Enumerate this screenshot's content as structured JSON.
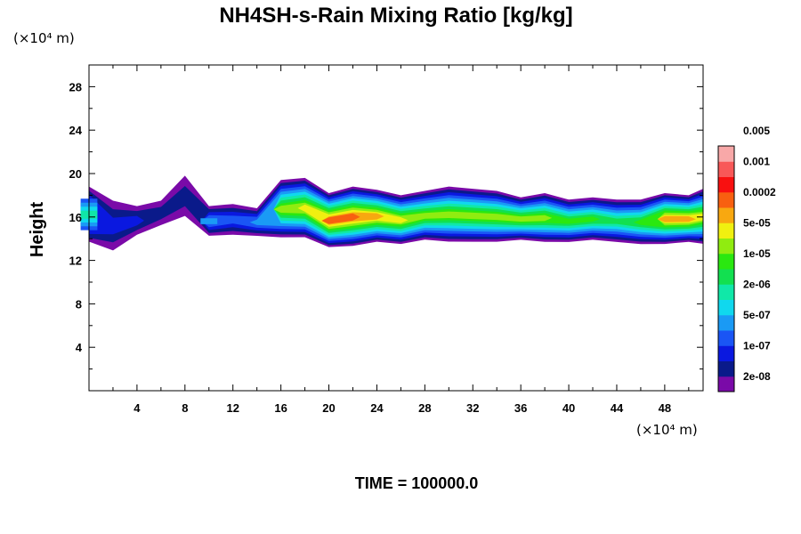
{
  "chart_data": {
    "type": "heatmap",
    "title": "NH4SH-s-Rain Mixing Ratio [kg/kg]",
    "ylabel": "Height",
    "x_unit": "(×10⁴ m)",
    "y_unit": "(×10⁴ m)",
    "footer": "TIME = 100000.0",
    "xlim": [
      0,
      51.2
    ],
    "ylim": [
      0,
      30
    ],
    "x_ticks": [
      4,
      8,
      12,
      16,
      20,
      24,
      28,
      32,
      36,
      40,
      44,
      48
    ],
    "y_ticks": [
      4,
      8,
      12,
      16,
      20,
      24,
      28
    ],
    "x_tick_labels": [
      "4",
      "8",
      "12",
      "16",
      "20",
      "24",
      "28",
      "32",
      "36",
      "40",
      "44",
      "48"
    ],
    "y_tick_labels": [
      "4",
      "8",
      "12",
      "16",
      "20",
      "24",
      "28"
    ],
    "colorbar": {
      "colors": [
        "#7a0aa8",
        "#0a1a8a",
        "#0a18e0",
        "#1a55f5",
        "#1a9af5",
        "#10d8ee",
        "#10e8a8",
        "#12e050",
        "#2ae810",
        "#90ec10",
        "#f0f010",
        "#f8a810",
        "#f86010",
        "#f81010",
        "#f85858",
        "#f8a8a8"
      ],
      "labels": [
        "2e-08",
        "1e-07",
        "5e-07",
        "2e-06",
        "1e-05",
        "5e-05",
        "0.0002",
        "0.001",
        "0.005"
      ]
    },
    "field": {
      "x_sample": [
        0,
        2,
        4,
        6,
        8,
        10,
        12,
        14,
        16,
        18,
        20,
        22,
        24,
        26,
        28,
        30,
        32,
        34,
        36,
        38,
        40,
        42,
        44,
        46,
        48,
        50,
        51.2
      ],
      "top": [
        18.8,
        17.5,
        17.0,
        17.5,
        19.8,
        17.0,
        17.2,
        16.8,
        19.4,
        19.6,
        18.2,
        18.8,
        18.5,
        18.0,
        18.4,
        18.8,
        18.6,
        18.4,
        17.8,
        18.2,
        17.6,
        17.8,
        17.6,
        17.6,
        18.2,
        18.0,
        18.6
      ],
      "bottom": [
        13.6,
        12.8,
        14.3,
        15.2,
        16.0,
        14.2,
        14.3,
        14.2,
        14.0,
        14.0,
        13.1,
        13.2,
        13.6,
        13.4,
        13.8,
        13.6,
        13.6,
        13.6,
        13.8,
        13.6,
        13.6,
        13.8,
        13.6,
        13.4,
        13.4,
        13.6,
        13.4
      ],
      "peak_level": [
        6,
        2,
        2,
        1,
        1,
        4,
        3,
        4,
        9,
        10,
        12,
        12,
        11,
        10,
        9,
        9,
        9,
        9,
        9,
        9,
        8,
        8,
        7,
        8,
        11,
        11,
        10
      ]
    }
  }
}
